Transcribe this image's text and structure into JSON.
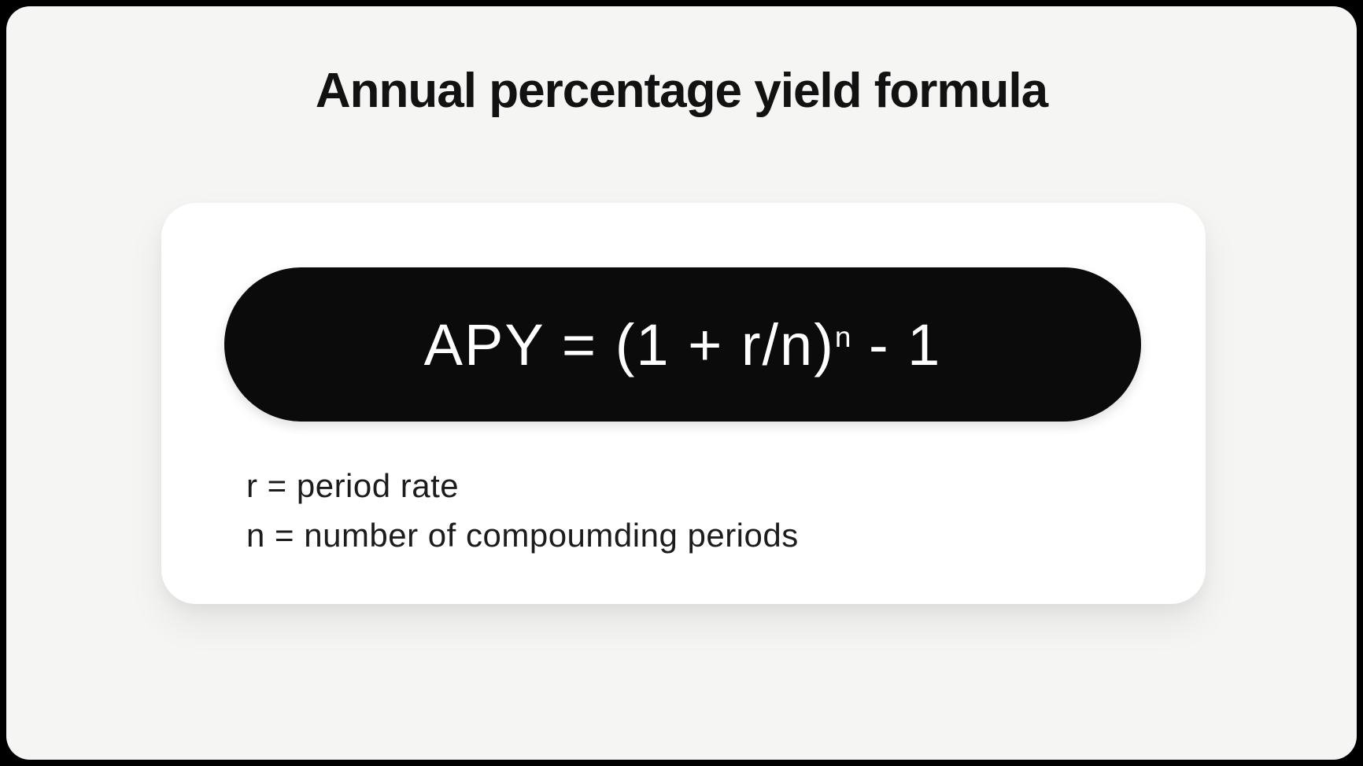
{
  "title": "Annual percentage yield formula",
  "card": {
    "formula": {
      "main": "APY = (1 + r/n)",
      "exponent": "n",
      "suffix": " - 1"
    },
    "legend": [
      {
        "text": "r = period rate"
      },
      {
        "text": "n = number of compoumding periods"
      }
    ]
  },
  "colors": {
    "page_background": "#000000",
    "panel_background": "#f5f5f4",
    "card_background": "#ffffff",
    "pill_background": "#0b0b0b",
    "title_text": "#121212",
    "formula_text": "#ffffff",
    "legend_text": "#1c1c1c"
  }
}
